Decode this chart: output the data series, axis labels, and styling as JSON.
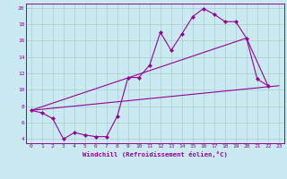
{
  "bg_color": "#c8eaf0",
  "line_color": "#990099",
  "grid_color": "#aacccc",
  "spine_color": "#990099",
  "xlim": [
    -0.5,
    23.5
  ],
  "ylim": [
    3.5,
    20.5
  ],
  "xticks": [
    0,
    1,
    2,
    3,
    4,
    5,
    6,
    7,
    8,
    9,
    10,
    11,
    12,
    13,
    14,
    15,
    16,
    17,
    18,
    19,
    20,
    21,
    22,
    23
  ],
  "yticks": [
    4,
    6,
    8,
    10,
    12,
    14,
    16,
    18,
    20
  ],
  "xlabel": "Windchill (Refroidissement éolien,°C)",
  "line1_x": [
    0,
    1,
    2,
    3,
    4,
    5,
    6,
    7,
    8,
    9,
    10,
    11,
    12,
    13,
    14,
    15,
    16,
    17,
    18,
    19,
    20,
    21,
    22
  ],
  "line1_y": [
    7.5,
    7.2,
    6.5,
    4.0,
    4.8,
    4.5,
    4.3,
    4.3,
    6.8,
    11.5,
    11.5,
    13.0,
    17.0,
    14.8,
    16.8,
    18.9,
    19.9,
    19.2,
    18.3,
    18.3,
    16.3,
    11.3,
    10.5
  ],
  "line2_x": [
    0,
    23
  ],
  "line2_y": [
    7.5,
    10.5
  ],
  "line3_x": [
    0,
    20,
    22
  ],
  "line3_y": [
    7.5,
    16.3,
    10.5
  ],
  "marker": "D",
  "markersize": 2.0,
  "linewidth": 0.8,
  "tick_fontsize": 4.5,
  "xlabel_fontsize": 5.2
}
